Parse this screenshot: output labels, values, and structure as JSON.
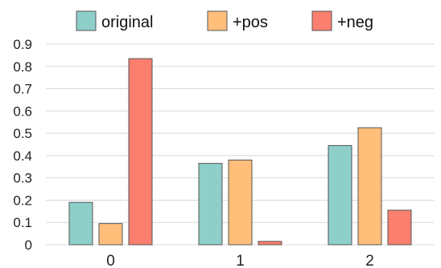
{
  "chart_data": {
    "type": "bar",
    "categories": [
      "0",
      "1",
      "2"
    ],
    "series": [
      {
        "name": "original",
        "color": "#8ECFC9",
        "values": [
          0.19,
          0.365,
          0.445
        ]
      },
      {
        "name": "+pos",
        "color": "#FFBE7A",
        "values": [
          0.095,
          0.38,
          0.525
        ]
      },
      {
        "name": "+neg",
        "color": "#FA7F6F",
        "values": [
          0.835,
          0.015,
          0.155
        ]
      }
    ],
    "yticks": [
      "0",
      "0.1",
      "0.2",
      "0.3",
      "0.4",
      "0.5",
      "0.6",
      "0.7",
      "0.8",
      "0.9"
    ],
    "ylim": [
      0,
      0.9
    ],
    "grid": true,
    "legend": "top-center",
    "title": "",
    "xlabel": "",
    "ylabel": ""
  }
}
